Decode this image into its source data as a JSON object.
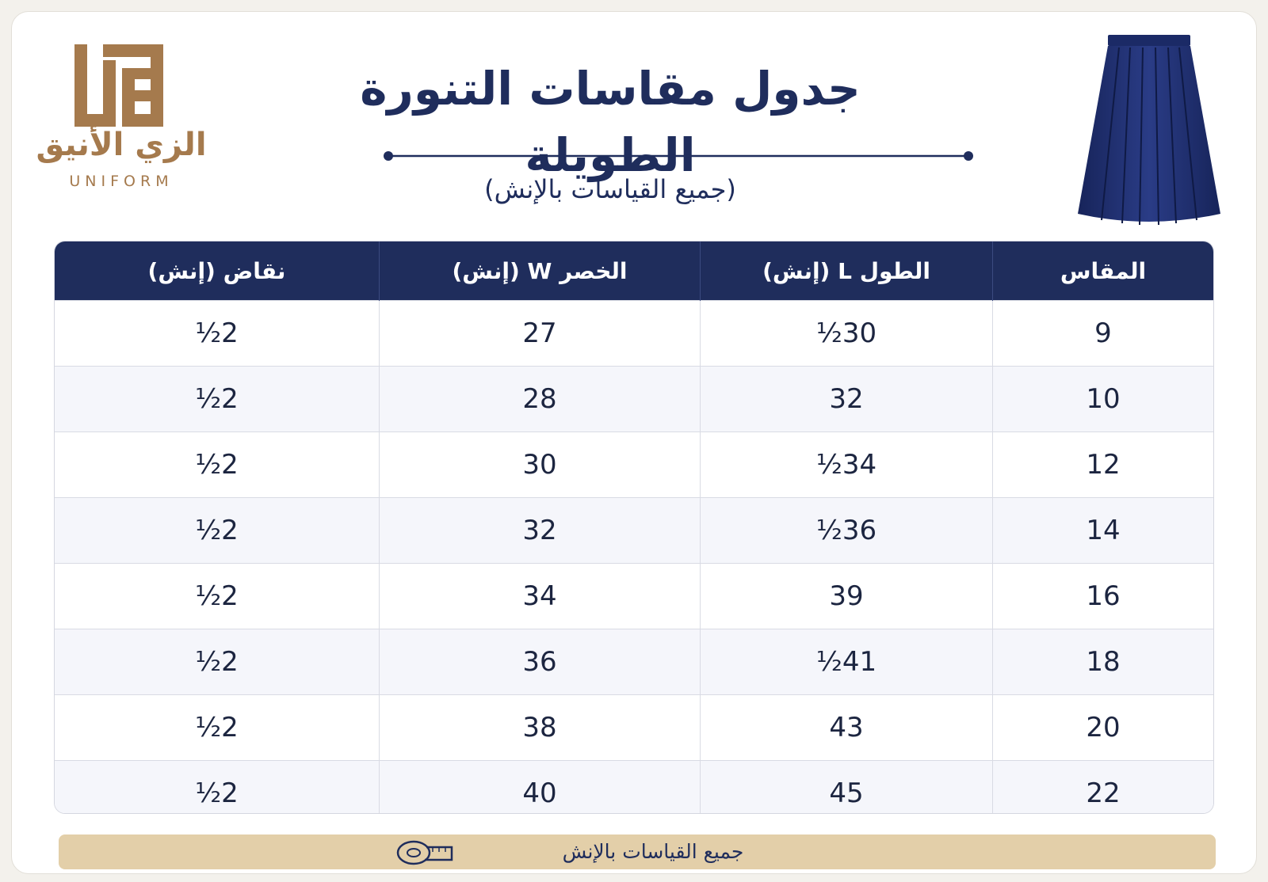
{
  "colors": {
    "navy": "#1f2d5c",
    "gold": "#a57a4d",
    "footer_band": "#e3cfa9"
  },
  "brand": {
    "name_ar": "الزي الأنيق",
    "name_en": "UNIFORM"
  },
  "header": {
    "title": "جدول مقاسات التنورة الطويلة",
    "subtitle": "(جميع القياسات بالإنش)"
  },
  "table": {
    "headers": [
      "المقاس",
      "الطول L (إنش)",
      "الخصر W (إنش)",
      "نقاض (إنش)"
    ],
    "rows": [
      [
        "9",
        "30½",
        "27",
        "2½"
      ],
      [
        "10",
        "32",
        "28",
        "2½"
      ],
      [
        "12",
        "34½",
        "30",
        "2½"
      ],
      [
        "14",
        "36½",
        "32",
        "2½"
      ],
      [
        "16",
        "39",
        "34",
        "2½"
      ],
      [
        "18",
        "41½",
        "36",
        "2½"
      ],
      [
        "20",
        "43",
        "38",
        "2½"
      ],
      [
        "22",
        "45",
        "40",
        "2½"
      ]
    ]
  },
  "footer": {
    "text": "جميع القياسات بالإنش",
    "icon": "measuring-tape-icon"
  },
  "images": {
    "product": "navy-pleated-skirt",
    "logo": "gold-square-kufic-logo"
  }
}
